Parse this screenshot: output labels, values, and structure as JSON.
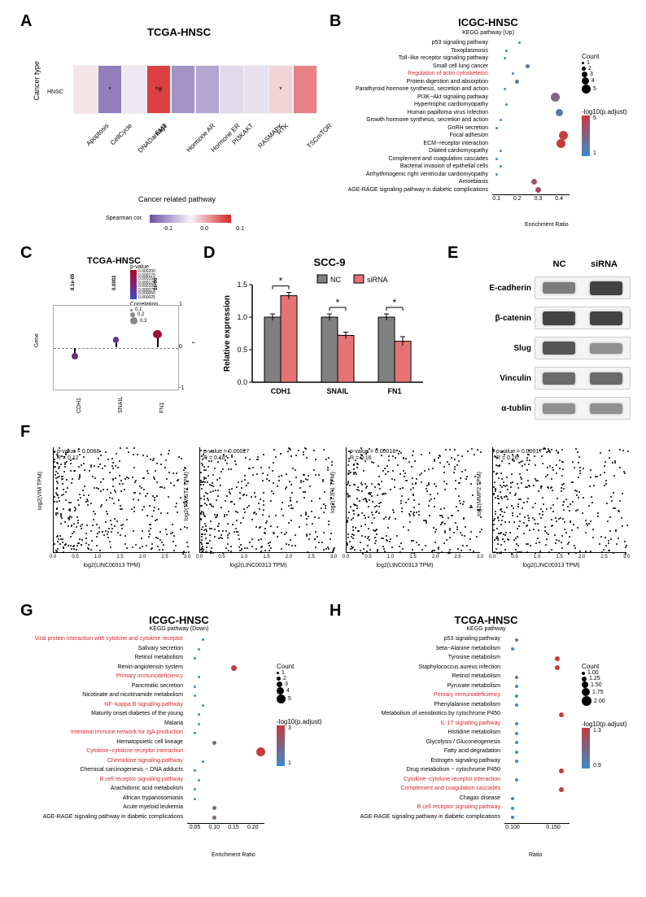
{
  "panelA": {
    "label": "A",
    "title": "TCGA-HNSC",
    "y_axis_title": "Cancer type",
    "y_label": "HNSC",
    "x_axis_title": "Cancer related pathway",
    "pathways": [
      "Apoptosis",
      "CellCycle",
      "DNADamage",
      "EMT",
      "Hormone AR",
      "Hormone ER",
      "PI3KAKT",
      "RASMAPK",
      "RTK",
      "TSCmTOR"
    ],
    "values": [
      0.02,
      -0.18,
      -0.02,
      0.22,
      -0.15,
      -0.12,
      -0.04,
      -0.03,
      0.04,
      0.14
    ],
    "stars": [
      "",
      "*",
      "",
      "*#",
      "",
      "",
      "",
      "",
      "*",
      ""
    ],
    "legend_title": "Spearman cor.",
    "legend_ticks": [
      "-0.1",
      "0.0",
      "0.1"
    ],
    "color_neg": "#6a51a3",
    "color_pos": "#d62728",
    "color_mid": "#f7f4f9"
  },
  "panelB": {
    "label": "B",
    "title": "ICGC-HNSC",
    "subtitle": "KEGG pathway (Up)",
    "x_axis": "Enrichment Ratio",
    "x_ticks": [
      "0.1",
      "0.2",
      "0.3",
      "0.4"
    ],
    "count_legend": {
      "title": "Count",
      "values": [
        1,
        2,
        3,
        4,
        5
      ],
      "sizes": [
        3,
        5,
        7,
        9,
        11
      ]
    },
    "color_legend": {
      "title": "-log10(p.adjust)",
      "min": 1,
      "max": 5,
      "color_low": "#3b8bcc",
      "color_high": "#c43c3c"
    },
    "items": [
      {
        "name": "p53 signaling pathway",
        "highlight": false,
        "x": 0.21,
        "count": 1,
        "p": 1
      },
      {
        "name": "Toxoplasmosis",
        "highlight": false,
        "x": 0.15,
        "count": 1,
        "p": 1
      },
      {
        "name": "Toll−like receptor signaling pathway",
        "highlight": false,
        "x": 0.14,
        "count": 1,
        "p": 1
      },
      {
        "name": "Small cell lung cancer",
        "highlight": false,
        "x": 0.25,
        "count": 2,
        "p": 2
      },
      {
        "name": "Regulation of actin cytoskeleton",
        "highlight": true,
        "x": 0.18,
        "count": 1,
        "p": 1
      },
      {
        "name": "Protein digestion and absorption",
        "highlight": false,
        "x": 0.2,
        "count": 2,
        "p": 2
      },
      {
        "name": "Parathyroid hormone synthesis, secretion and action",
        "highlight": false,
        "x": 0.14,
        "count": 1,
        "p": 1
      },
      {
        "name": "PI3K−Akt signaling pathway",
        "highlight": false,
        "x": 0.38,
        "count": 5,
        "p": 3
      },
      {
        "name": "Hypertrophic cardiomyopathy",
        "highlight": false,
        "x": 0.15,
        "count": 1,
        "p": 1
      },
      {
        "name": "Human papilloma virus infection",
        "highlight": false,
        "x": 0.4,
        "count": 4,
        "p": 2
      },
      {
        "name": "Growth hormone synthesis, secretion and action",
        "highlight": false,
        "x": 0.12,
        "count": 1,
        "p": 1
      },
      {
        "name": "GnRH secretion",
        "highlight": false,
        "x": 0.1,
        "count": 1,
        "p": 1
      },
      {
        "name": "Focal adhesion",
        "highlight": false,
        "x": 0.42,
        "count": 5,
        "p": 5
      },
      {
        "name": "ECM−receptor interaction",
        "highlight": false,
        "x": 0.41,
        "count": 5,
        "p": 5
      },
      {
        "name": "Dilated cardiomyopathy",
        "highlight": false,
        "x": 0.12,
        "count": 1,
        "p": 1
      },
      {
        "name": "Complement and coagulation cascades",
        "highlight": false,
        "x": 0.1,
        "count": 1,
        "p": 1
      },
      {
        "name": "Bacterial invasion of epithelial cells",
        "highlight": false,
        "x": 0.12,
        "count": 1,
        "p": 1
      },
      {
        "name": "Arrhythmogenic right ventricular cardiomyopathy",
        "highlight": false,
        "x": 0.1,
        "count": 1,
        "p": 1
      },
      {
        "name": "Amoebiasis",
        "highlight": false,
        "x": 0.28,
        "count": 3,
        "p": 4
      },
      {
        "name": "AGE-RAGE signaling pathway in diabetic complications",
        "highlight": false,
        "x": 0.3,
        "count": 3,
        "p": 4
      }
    ]
  },
  "panelC": {
    "label": "C",
    "title": "TCGA-HNSC",
    "y_axis_title": "Gene",
    "genes": [
      "CDH1",
      "SNAIL",
      "FN1"
    ],
    "pvalues": [
      "8.1e-05",
      "0.0002",
      "1e-06"
    ],
    "r_axis_title": "r",
    "r_ticks": [
      "-1",
      "0",
      "1"
    ],
    "corr": [
      -0.2,
      0.18,
      0.32
    ],
    "legend_pvalue_title": "p-value",
    "legend_pvalue_ticks": [
      "0.000200",
      "0.000175",
      "0.000150",
      "0.000125",
      "0.000100",
      "0.000075",
      "0.000050",
      "0.000025"
    ],
    "legend_corr_title": "Correlation",
    "legend_corr_ticks": [
      "0.1",
      "0.2",
      "0.3"
    ],
    "color_low": "#3b4cc0",
    "color_high": "#b40426"
  },
  "panelD": {
    "label": "D",
    "title": "SCC-9",
    "legend": [
      "NC",
      "siRNA"
    ],
    "y_axis": "Relative expression",
    "y_ticks": [
      "0.0",
      "0.5",
      "1.0",
      "1.5"
    ],
    "groups": [
      "CDH1",
      "SNAIL",
      "FN1"
    ],
    "nc_values": [
      1.0,
      1.0,
      1.0
    ],
    "si_values": [
      1.33,
      0.72,
      0.63
    ],
    "nc_err": [
      0.05,
      0.05,
      0.05
    ],
    "si_err": [
      0.05,
      0.05,
      0.07
    ],
    "sig": [
      "*",
      "*",
      "*"
    ],
    "nc_color": "#808080",
    "si_color": "#e57373",
    "bar_border": "#000"
  },
  "panelE": {
    "label": "E",
    "columns": [
      "NC",
      "siRNA"
    ],
    "proteins": [
      "E-cadherin",
      "β-catenin",
      "Slug",
      "Vinculin",
      "α-tublin"
    ],
    "band_intensity": [
      [
        0.6,
        0.9
      ],
      [
        0.9,
        0.9
      ],
      [
        0.8,
        0.5
      ],
      [
        0.7,
        0.7
      ],
      [
        0.5,
        0.5
      ]
    ],
    "band_color_low": "#f0f0f0",
    "band_color_high": "#303030"
  },
  "panelF": {
    "label": "F",
    "x_axis": "log2(LINC00313 TPM)",
    "subplots": [
      {
        "y_axis": "log2(VIM TPM)",
        "pval": "p-value = 0.0066",
        "R": "R = 0.12"
      },
      {
        "y_axis": "log2(TWIST1 TPM)",
        "pval": "p-value = 0.00027",
        "R": "R = 0.16"
      },
      {
        "y_axis": "log2(TJP1 TPM)",
        "pval": "p-value = 0.00018",
        "R": "R = 0.16"
      },
      {
        "y_axis": "log2(MMP2 TPM)",
        "pval": "p-value = 0.00017",
        "R": "R = 0.16"
      }
    ],
    "x_ticks": [
      "0.0",
      "0.5",
      "1.0",
      "1.5",
      "2.0",
      "2.5",
      "3.0"
    ],
    "n_points": 400
  },
  "panelG": {
    "label": "G",
    "title": "ICGC-HNSC",
    "subtitle": "KEGG pathway (Down)",
    "x_axis": "Enrichment Ratio",
    "x_ticks": [
      "0.05",
      "0.10",
      "0.15",
      "0.20"
    ],
    "count_legend": {
      "title": "Count",
      "values": [
        1,
        2,
        3,
        4,
        5
      ],
      "sizes": [
        3,
        5,
        7,
        9,
        11
      ]
    },
    "color_legend": {
      "title": "-log10(p.adjust)",
      "min": 1,
      "max": 3,
      "color_low": "#3b8bcc",
      "color_high": "#c43c3c"
    },
    "items": [
      {
        "name": "Viral protein interaction with cytokine and cytokine receptor",
        "highlight": true,
        "x": 0.07,
        "count": 1,
        "p": 1
      },
      {
        "name": "Salivary secretion",
        "highlight": false,
        "x": 0.06,
        "count": 1,
        "p": 1
      },
      {
        "name": "Retinol metabolism",
        "highlight": false,
        "x": 0.05,
        "count": 1,
        "p": 1
      },
      {
        "name": "Renin-angiotensin system",
        "highlight": false,
        "x": 0.15,
        "count": 3,
        "p": 3
      },
      {
        "name": "Primary immunodeficiency",
        "highlight": true,
        "x": 0.06,
        "count": 1,
        "p": 1
      },
      {
        "name": "Pancreatic secretion",
        "highlight": false,
        "x": 0.05,
        "count": 1,
        "p": 1
      },
      {
        "name": "Nicotinate and nicotinamide metabolism",
        "highlight": false,
        "x": 0.05,
        "count": 1,
        "p": 1
      },
      {
        "name": "NF−kappa B signaling pathway",
        "highlight": true,
        "x": 0.07,
        "count": 1,
        "p": 1
      },
      {
        "name": "Maturity onset diabetes of the young",
        "highlight": false,
        "x": 0.06,
        "count": 1,
        "p": 1
      },
      {
        "name": "Malaria",
        "highlight": false,
        "x": 0.06,
        "count": 1,
        "p": 1
      },
      {
        "name": "Intestinal immune network for IgA production",
        "highlight": true,
        "x": 0.05,
        "count": 1,
        "p": 1
      },
      {
        "name": "Hematopoietic cell lineage",
        "highlight": false,
        "x": 0.1,
        "count": 2,
        "p": 2
      },
      {
        "name": "Cytokine−cytokine receptor interaction",
        "highlight": true,
        "x": 0.22,
        "count": 5,
        "p": 3
      },
      {
        "name": "Chemokine signaling pathway",
        "highlight": true,
        "x": 0.07,
        "count": 1,
        "p": 1
      },
      {
        "name": "Chemical carcinogenesis − DNA adducts",
        "highlight": false,
        "x": 0.05,
        "count": 1,
        "p": 1
      },
      {
        "name": "B cell receptor signaling pathway",
        "highlight": true,
        "x": 0.06,
        "count": 1,
        "p": 1
      },
      {
        "name": "Arachidonic acid metabolism",
        "highlight": false,
        "x": 0.05,
        "count": 1,
        "p": 1
      },
      {
        "name": "African trypanosomiasis",
        "highlight": false,
        "x": 0.05,
        "count": 1,
        "p": 1
      },
      {
        "name": "Acute myeloid leukemia",
        "highlight": false,
        "x": 0.1,
        "count": 2,
        "p": 2
      },
      {
        "name": "AGE-RAGE signaling pathway in diabetic complications",
        "highlight": false,
        "x": 0.1,
        "count": 2,
        "p": 2
      }
    ]
  },
  "panelH": {
    "label": "H",
    "title": "TCGA-HNSC",
    "subtitle": "KEGG pathway",
    "x_axis": "Ratio",
    "x_ticks": [
      "0.100",
      "0.150"
    ],
    "count_legend": {
      "title": "Count",
      "values": [
        "1.00",
        "1.25",
        "1.50",
        "1.75",
        "2.00"
      ],
      "sizes": [
        4,
        6,
        8,
        10,
        12
      ]
    },
    "color_legend": {
      "title": "-log10(p.adjust)",
      "min": 0.9,
      "max": 1.3,
      "color_low": "#3b8bcc",
      "color_high": "#c43c3c"
    },
    "items": [
      {
        "name": "p53 signaling pathway",
        "highlight": false,
        "x": 0.105,
        "count": 1,
        "p": 1.0
      },
      {
        "name": "beta−Alanine metabolism",
        "highlight": false,
        "x": 0.1,
        "count": 1,
        "p": 0.9
      },
      {
        "name": "Tyrosine metabolism",
        "highlight": false,
        "x": 0.155,
        "count": 2,
        "p": 1.3
      },
      {
        "name": "Staphylococcus aureus infection",
        "highlight": false,
        "x": 0.155,
        "count": 2,
        "p": 1.3
      },
      {
        "name": "Retinol metabolism",
        "highlight": false,
        "x": 0.105,
        "count": 1,
        "p": 1.0
      },
      {
        "name": "Pyruvate metabolism",
        "highlight": false,
        "x": 0.105,
        "count": 1,
        "p": 0.9
      },
      {
        "name": "Primary immunodeficiency",
        "highlight": true,
        "x": 0.105,
        "count": 1,
        "p": 0.9
      },
      {
        "name": "Phenylalanine metabolism",
        "highlight": false,
        "x": 0.105,
        "count": 1,
        "p": 0.9
      },
      {
        "name": "Metabolism of xenobiotics by cytochrome P450",
        "highlight": false,
        "x": 0.16,
        "count": 2,
        "p": 1.3
      },
      {
        "name": "IL-17 signaling pathway",
        "highlight": true,
        "x": 0.105,
        "count": 1,
        "p": 0.9
      },
      {
        "name": "Histidine metabolism",
        "highlight": false,
        "x": 0.105,
        "count": 1,
        "p": 0.9
      },
      {
        "name": "Glycolysis / Gluconeogenesis",
        "highlight": false,
        "x": 0.105,
        "count": 1,
        "p": 0.9
      },
      {
        "name": "Fatty acid degradation",
        "highlight": false,
        "x": 0.105,
        "count": 1,
        "p": 0.9
      },
      {
        "name": "Estrogen signaling pathway",
        "highlight": false,
        "x": 0.105,
        "count": 1,
        "p": 0.9
      },
      {
        "name": "Drug metabolism − cytochrome P450",
        "highlight": false,
        "x": 0.16,
        "count": 2,
        "p": 1.3
      },
      {
        "name": "Cytokine−cytokine receptor interaction",
        "highlight": true,
        "x": 0.105,
        "count": 1,
        "p": 0.9
      },
      {
        "name": "Complement and coagulation cascades",
        "highlight": true,
        "x": 0.16,
        "count": 2,
        "p": 1.3
      },
      {
        "name": "Chagas disease",
        "highlight": false,
        "x": 0.1,
        "count": 1,
        "p": 0.9
      },
      {
        "name": "B cell receptor signaling pathway",
        "highlight": true,
        "x": 0.1,
        "count": 1,
        "p": 0.9
      },
      {
        "name": "AGE-RAGE signaling pathway in diabetic complications",
        "highlight": false,
        "x": 0.1,
        "count": 1,
        "p": 0.9
      }
    ]
  }
}
